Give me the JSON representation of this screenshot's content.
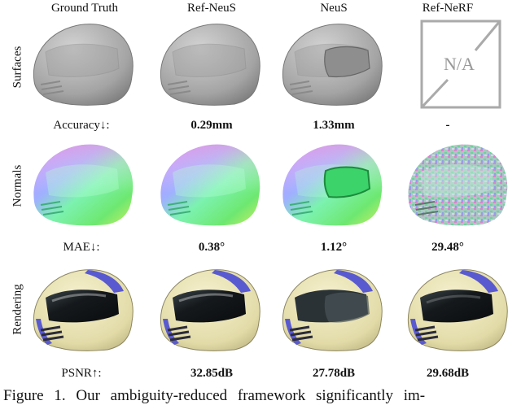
{
  "columns": [
    "Ground Truth",
    "Ref-NeuS",
    "NeuS",
    "Ref-NeRF"
  ],
  "rows": {
    "surfaces": {
      "label": "Surfaces",
      "metric_label": "Accuracy↓:",
      "values": [
        "",
        "0.29mm",
        "1.33mm",
        "-"
      ]
    },
    "normals": {
      "label": "Normals",
      "metric_label": "MAE↓:",
      "values": [
        "",
        "0.38°",
        "1.12°",
        "29.48°"
      ]
    },
    "rendering": {
      "label": "Rendering",
      "metric_label": "PSNR↑:",
      "values": [
        "",
        "32.85dB",
        "27.78dB",
        "29.68dB"
      ]
    }
  },
  "na_text": "N/A",
  "caption": "Figure 1. Our ambiguity-reduced framework significantly im-",
  "colors": {
    "surface_gray": "#a9a9a9",
    "helmet_yellow": "#e6e0b0",
    "stripe_blue": "#5a5ad0",
    "visor_dark": "#15191c"
  }
}
